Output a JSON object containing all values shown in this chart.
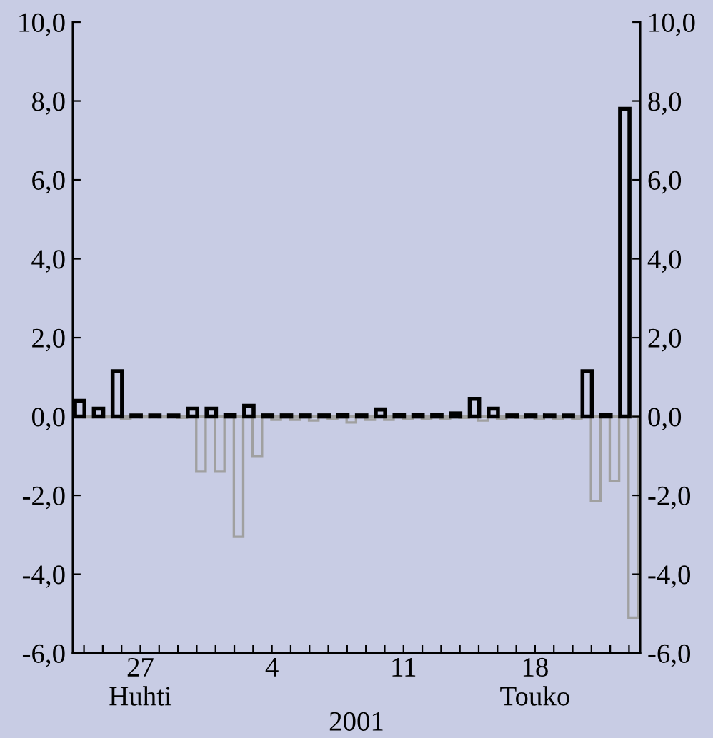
{
  "chart_data": {
    "type": "bar",
    "xlabel": "2001",
    "categories": [
      null,
      null,
      null,
      "27\nHuhti",
      null,
      null,
      null,
      null,
      null,
      null,
      "4",
      null,
      null,
      null,
      null,
      null,
      null,
      "11",
      null,
      null,
      null,
      null,
      null,
      null,
      "18\nTouko",
      null,
      null,
      null,
      null,
      null
    ],
    "series": [
      {
        "color": "#000000",
        "values": [
          0.4,
          0.2,
          1.15,
          0.03,
          0.03,
          0.03,
          0.2,
          0.2,
          0.05,
          0.27,
          0.03,
          0.03,
          0.03,
          0.03,
          0.05,
          0.03,
          0.18,
          0.05,
          0.05,
          0.04,
          0.08,
          0.45,
          0.2,
          0.03,
          0.03,
          0.03,
          0.03,
          1.15,
          0.05,
          7.8
        ]
      },
      {
        "color": "#a0a0a0",
        "values": [
          -0.02,
          -0.02,
          -0.05,
          -0.02,
          -0.02,
          -0.03,
          -1.4,
          -1.4,
          -3.05,
          -1.0,
          -0.08,
          -0.08,
          -0.1,
          -0.05,
          -0.15,
          -0.08,
          -0.08,
          -0.05,
          -0.07,
          -0.07,
          -0.03,
          -0.1,
          -0.05,
          -0.03,
          -0.05,
          -0.05,
          -0.05,
          -2.15,
          -1.63,
          -5.1
        ]
      }
    ],
    "ylim": [
      -6,
      10
    ],
    "yticks": [
      {
        "value": -6,
        "label": "-6,0"
      },
      {
        "value": -4,
        "label": "-4,0"
      },
      {
        "value": -2,
        "label": "-2,0"
      },
      {
        "value": 0,
        "label": "0,0"
      },
      {
        "value": 2,
        "label": "2,0"
      },
      {
        "value": 4,
        "label": "4,0"
      },
      {
        "value": 6,
        "label": "6,0"
      },
      {
        "value": 8,
        "label": "8,0"
      },
      {
        "value": 10,
        "label": "10,0"
      }
    ],
    "y2lim": [
      -6,
      10
    ],
    "y2ticks": [
      {
        "value": -6,
        "label": "-6,0"
      },
      {
        "value": -4,
        "label": "-4,0"
      },
      {
        "value": -2,
        "label": "-2,0"
      },
      {
        "value": 0,
        "label": "0,0"
      },
      {
        "value": 2,
        "label": "2,0"
      },
      {
        "value": 4,
        "label": "4,0"
      },
      {
        "value": 6,
        "label": "6,0"
      },
      {
        "value": 8,
        "label": "8,0"
      },
      {
        "value": 10,
        "label": "10,0"
      }
    ],
    "grid": false,
    "legend": false
  }
}
